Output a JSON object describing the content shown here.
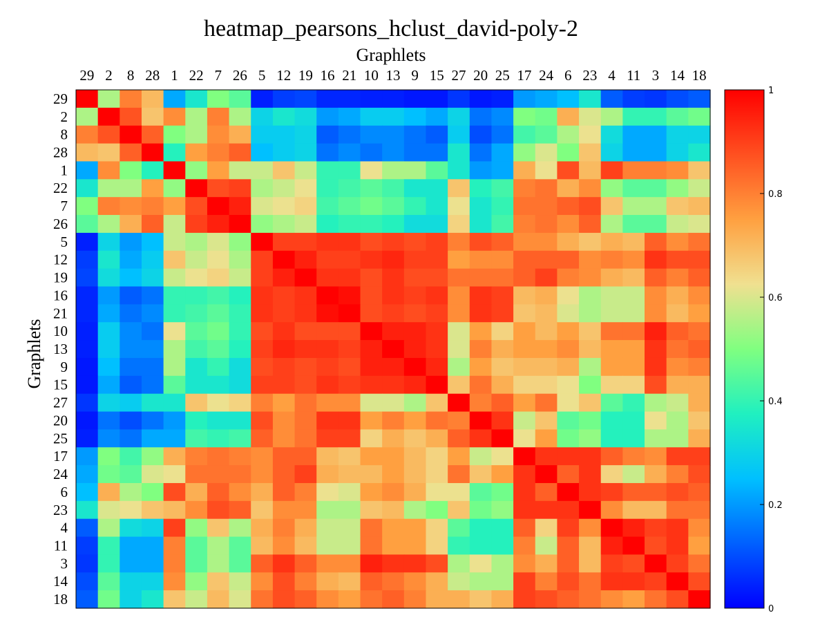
{
  "chart_data": {
    "type": "heatmap",
    "title": "heatmap_pearsons_hclust_david-poly-2",
    "xlabel": "Graphlets",
    "ylabel": "Graphlets",
    "labels": [
      "29",
      "2",
      "8",
      "28",
      "1",
      "22",
      "7",
      "26",
      "5",
      "12",
      "19",
      "16",
      "21",
      "10",
      "13",
      "9",
      "15",
      "27",
      "20",
      "25",
      "17",
      "24",
      "6",
      "23",
      "4",
      "11",
      "3",
      "14",
      "18"
    ],
    "colorbar": {
      "min": 0,
      "max": 1,
      "ticks": [
        {
          "value": 0,
          "label": "0"
        },
        {
          "value": 0.2,
          "label": "0.2"
        },
        {
          "value": 0.4,
          "label": "0.4"
        },
        {
          "value": 0.6,
          "label": "0.6"
        },
        {
          "value": 0.8,
          "label": "0.8"
        },
        {
          "value": 1,
          "label": "1"
        }
      ]
    },
    "colormap": "jet",
    "values": [
      [
        1.0,
        0.55,
        0.8,
        0.7,
        0.22,
        0.35,
        0.5,
        0.45,
        0.04,
        0.08,
        0.09,
        0.05,
        0.05,
        0.04,
        0.04,
        0.03,
        0.03,
        0.07,
        0.03,
        0.04,
        0.2,
        0.22,
        0.25,
        0.35,
        0.12,
        0.08,
        0.07,
        0.1,
        0.12
      ],
      [
        0.55,
        1.0,
        0.87,
        0.68,
        0.78,
        0.55,
        0.8,
        0.55,
        0.3,
        0.35,
        0.32,
        0.2,
        0.22,
        0.28,
        0.28,
        0.25,
        0.22,
        0.3,
        0.15,
        0.18,
        0.5,
        0.48,
        0.72,
        0.6,
        0.55,
        0.4,
        0.4,
        0.45,
        0.48
      ],
      [
        0.8,
        0.87,
        1.0,
        0.85,
        0.5,
        0.55,
        0.78,
        0.72,
        0.28,
        0.28,
        0.3,
        0.12,
        0.15,
        0.18,
        0.18,
        0.15,
        0.12,
        0.28,
        0.1,
        0.15,
        0.42,
        0.45,
        0.55,
        0.62,
        0.32,
        0.22,
        0.22,
        0.3,
        0.3
      ],
      [
        0.7,
        0.68,
        0.85,
        1.0,
        0.38,
        0.75,
        0.8,
        0.85,
        0.25,
        0.28,
        0.3,
        0.15,
        0.18,
        0.15,
        0.18,
        0.15,
        0.15,
        0.35,
        0.15,
        0.22,
        0.52,
        0.6,
        0.5,
        0.68,
        0.3,
        0.22,
        0.22,
        0.3,
        0.35
      ],
      [
        0.22,
        0.78,
        0.5,
        0.38,
        1.0,
        0.52,
        0.75,
        0.58,
        0.58,
        0.68,
        0.58,
        0.4,
        0.4,
        0.62,
        0.55,
        0.55,
        0.45,
        0.35,
        0.2,
        0.22,
        0.72,
        0.62,
        0.88,
        0.7,
        0.9,
        0.8,
        0.8,
        0.78,
        0.68
      ],
      [
        0.35,
        0.55,
        0.55,
        0.75,
        0.52,
        1.0,
        0.88,
        0.9,
        0.55,
        0.58,
        0.62,
        0.4,
        0.42,
        0.45,
        0.42,
        0.35,
        0.35,
        0.68,
        0.38,
        0.42,
        0.8,
        0.82,
        0.72,
        0.78,
        0.52,
        0.45,
        0.45,
        0.52,
        0.58
      ],
      [
        0.5,
        0.8,
        0.78,
        0.8,
        0.75,
        0.88,
        1.0,
        0.95,
        0.6,
        0.62,
        0.65,
        0.42,
        0.45,
        0.48,
        0.45,
        0.4,
        0.35,
        0.62,
        0.35,
        0.4,
        0.82,
        0.82,
        0.85,
        0.88,
        0.68,
        0.55,
        0.55,
        0.68,
        0.7
      ],
      [
        0.45,
        0.55,
        0.72,
        0.85,
        0.58,
        0.9,
        0.95,
        1.0,
        0.52,
        0.55,
        0.58,
        0.38,
        0.4,
        0.4,
        0.38,
        0.32,
        0.32,
        0.65,
        0.35,
        0.42,
        0.8,
        0.82,
        0.78,
        0.85,
        0.55,
        0.45,
        0.45,
        0.58,
        0.6
      ],
      [
        0.04,
        0.3,
        0.2,
        0.25,
        0.58,
        0.55,
        0.6,
        0.52,
        1.0,
        0.9,
        0.9,
        0.92,
        0.92,
        0.88,
        0.9,
        0.88,
        0.9,
        0.8,
        0.88,
        0.85,
        0.78,
        0.78,
        0.72,
        0.68,
        0.72,
        0.7,
        0.85,
        0.78,
        0.82
      ],
      [
        0.08,
        0.35,
        0.22,
        0.28,
        0.68,
        0.58,
        0.62,
        0.55,
        0.9,
        1.0,
        0.95,
        0.9,
        0.9,
        0.92,
        0.94,
        0.9,
        0.9,
        0.75,
        0.78,
        0.78,
        0.85,
        0.85,
        0.85,
        0.78,
        0.8,
        0.78,
        0.92,
        0.88,
        0.88
      ],
      [
        0.09,
        0.32,
        0.25,
        0.3,
        0.58,
        0.62,
        0.65,
        0.58,
        0.9,
        0.95,
        1.0,
        0.92,
        0.92,
        0.88,
        0.92,
        0.88,
        0.88,
        0.82,
        0.82,
        0.82,
        0.85,
        0.9,
        0.8,
        0.78,
        0.72,
        0.7,
        0.85,
        0.8,
        0.85
      ],
      [
        0.05,
        0.2,
        0.12,
        0.15,
        0.4,
        0.4,
        0.42,
        0.38,
        0.92,
        0.9,
        0.92,
        1.0,
        0.98,
        0.88,
        0.92,
        0.9,
        0.92,
        0.78,
        0.92,
        0.9,
        0.7,
        0.72,
        0.62,
        0.55,
        0.58,
        0.58,
        0.78,
        0.72,
        0.78
      ],
      [
        0.05,
        0.22,
        0.15,
        0.18,
        0.4,
        0.42,
        0.45,
        0.4,
        0.92,
        0.9,
        0.92,
        0.98,
        1.0,
        0.88,
        0.9,
        0.88,
        0.9,
        0.78,
        0.92,
        0.9,
        0.68,
        0.7,
        0.6,
        0.55,
        0.58,
        0.58,
        0.78,
        0.7,
        0.75
      ],
      [
        0.04,
        0.28,
        0.18,
        0.15,
        0.62,
        0.45,
        0.48,
        0.4,
        0.88,
        0.92,
        0.88,
        0.88,
        0.88,
        1.0,
        0.95,
        0.95,
        0.92,
        0.6,
        0.75,
        0.65,
        0.75,
        0.7,
        0.75,
        0.68,
        0.82,
        0.82,
        0.95,
        0.85,
        0.82
      ],
      [
        0.04,
        0.28,
        0.18,
        0.18,
        0.55,
        0.42,
        0.45,
        0.38,
        0.9,
        0.94,
        0.92,
        0.92,
        0.9,
        0.95,
        1.0,
        0.95,
        0.92,
        0.6,
        0.8,
        0.72,
        0.75,
        0.75,
        0.78,
        0.7,
        0.75,
        0.75,
        0.92,
        0.82,
        0.85
      ],
      [
        0.03,
        0.25,
        0.15,
        0.15,
        0.55,
        0.35,
        0.4,
        0.32,
        0.88,
        0.9,
        0.88,
        0.9,
        0.88,
        0.95,
        0.95,
        1.0,
        0.94,
        0.55,
        0.75,
        0.68,
        0.7,
        0.7,
        0.72,
        0.55,
        0.75,
        0.75,
        0.92,
        0.78,
        0.8
      ],
      [
        0.03,
        0.22,
        0.12,
        0.15,
        0.45,
        0.35,
        0.35,
        0.32,
        0.9,
        0.9,
        0.88,
        0.92,
        0.9,
        0.92,
        0.92,
        0.94,
        1.0,
        0.68,
        0.82,
        0.72,
        0.65,
        0.65,
        0.62,
        0.5,
        0.65,
        0.65,
        0.88,
        0.72,
        0.72
      ],
      [
        0.07,
        0.3,
        0.28,
        0.35,
        0.35,
        0.68,
        0.62,
        0.65,
        0.8,
        0.75,
        0.82,
        0.78,
        0.78,
        0.6,
        0.6,
        0.55,
        0.68,
        1.0,
        0.8,
        0.85,
        0.75,
        0.82,
        0.62,
        0.68,
        0.45,
        0.4,
        0.55,
        0.58,
        0.72
      ],
      [
        0.03,
        0.15,
        0.1,
        0.15,
        0.2,
        0.38,
        0.35,
        0.35,
        0.88,
        0.78,
        0.82,
        0.92,
        0.92,
        0.75,
        0.8,
        0.75,
        0.82,
        0.8,
        1.0,
        0.92,
        0.58,
        0.68,
        0.45,
        0.48,
        0.38,
        0.38,
        0.62,
        0.55,
        0.68
      ],
      [
        0.04,
        0.18,
        0.15,
        0.22,
        0.22,
        0.42,
        0.4,
        0.42,
        0.85,
        0.78,
        0.82,
        0.9,
        0.9,
        0.65,
        0.72,
        0.68,
        0.72,
        0.85,
        0.92,
        1.0,
        0.62,
        0.75,
        0.48,
        0.52,
        0.38,
        0.38,
        0.55,
        0.55,
        0.72
      ],
      [
        0.2,
        0.5,
        0.42,
        0.52,
        0.72,
        0.8,
        0.82,
        0.8,
        0.78,
        0.85,
        0.85,
        0.7,
        0.68,
        0.75,
        0.75,
        0.7,
        0.65,
        0.75,
        0.58,
        0.62,
        1.0,
        0.92,
        0.92,
        0.92,
        0.85,
        0.8,
        0.78,
        0.9,
        0.9
      ],
      [
        0.22,
        0.48,
        0.45,
        0.6,
        0.62,
        0.82,
        0.82,
        0.82,
        0.78,
        0.85,
        0.9,
        0.72,
        0.7,
        0.7,
        0.75,
        0.7,
        0.65,
        0.82,
        0.68,
        0.75,
        0.92,
        1.0,
        0.85,
        0.92,
        0.65,
        0.58,
        0.72,
        0.8,
        0.88
      ],
      [
        0.25,
        0.72,
        0.55,
        0.5,
        0.88,
        0.72,
        0.85,
        0.78,
        0.72,
        0.85,
        0.8,
        0.62,
        0.6,
        0.75,
        0.78,
        0.72,
        0.62,
        0.62,
        0.45,
        0.48,
        0.92,
        0.85,
        1.0,
        0.92,
        0.9,
        0.85,
        0.85,
        0.88,
        0.85
      ],
      [
        0.35,
        0.6,
        0.62,
        0.68,
        0.7,
        0.78,
        0.88,
        0.85,
        0.68,
        0.78,
        0.78,
        0.55,
        0.55,
        0.68,
        0.7,
        0.55,
        0.5,
        0.68,
        0.48,
        0.52,
        0.92,
        0.92,
        0.92,
        1.0,
        0.78,
        0.7,
        0.7,
        0.82,
        0.82
      ],
      [
        0.12,
        0.55,
        0.32,
        0.3,
        0.9,
        0.52,
        0.68,
        0.55,
        0.72,
        0.8,
        0.72,
        0.58,
        0.58,
        0.82,
        0.75,
        0.75,
        0.65,
        0.45,
        0.38,
        0.38,
        0.85,
        0.65,
        0.9,
        0.78,
        1.0,
        0.95,
        0.9,
        0.92,
        0.78
      ],
      [
        0.08,
        0.4,
        0.22,
        0.22,
        0.8,
        0.45,
        0.55,
        0.45,
        0.7,
        0.78,
        0.7,
        0.58,
        0.58,
        0.82,
        0.75,
        0.75,
        0.65,
        0.4,
        0.38,
        0.38,
        0.8,
        0.58,
        0.85,
        0.7,
        0.95,
        1.0,
        0.88,
        0.92,
        0.75
      ],
      [
        0.07,
        0.4,
        0.22,
        0.22,
        0.8,
        0.45,
        0.55,
        0.45,
        0.85,
        0.92,
        0.85,
        0.78,
        0.78,
        0.95,
        0.92,
        0.92,
        0.88,
        0.55,
        0.62,
        0.55,
        0.78,
        0.72,
        0.85,
        0.7,
        0.9,
        0.88,
        1.0,
        0.9,
        0.82
      ],
      [
        0.1,
        0.45,
        0.3,
        0.3,
        0.78,
        0.52,
        0.68,
        0.58,
        0.78,
        0.88,
        0.8,
        0.72,
        0.7,
        0.85,
        0.82,
        0.78,
        0.72,
        0.58,
        0.55,
        0.55,
        0.9,
        0.8,
        0.88,
        0.82,
        0.92,
        0.92,
        0.9,
        1.0,
        0.88
      ],
      [
        0.12,
        0.48,
        0.3,
        0.35,
        0.68,
        0.58,
        0.7,
        0.6,
        0.82,
        0.88,
        0.85,
        0.78,
        0.75,
        0.82,
        0.85,
        0.8,
        0.72,
        0.72,
        0.68,
        0.72,
        0.9,
        0.88,
        0.85,
        0.82,
        0.78,
        0.75,
        0.82,
        0.88,
        1.0
      ]
    ]
  }
}
